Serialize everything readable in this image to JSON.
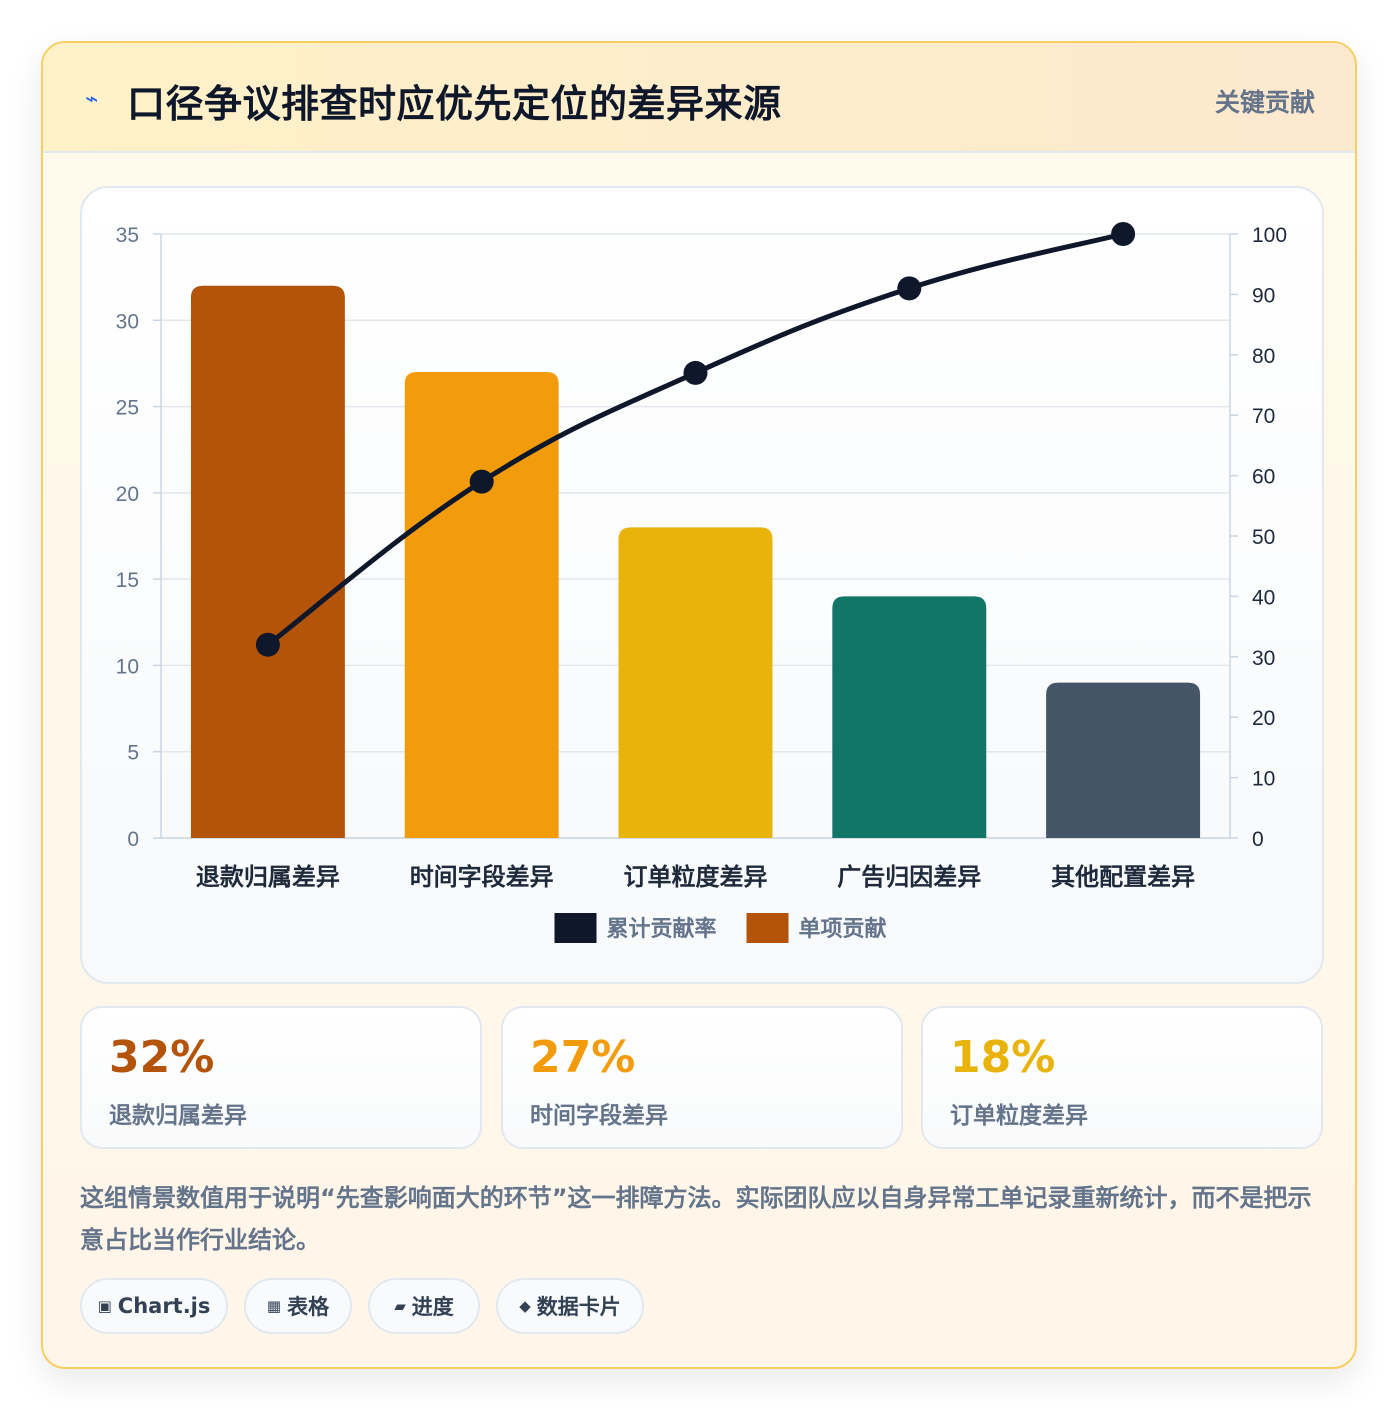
{
  "header": {
    "icon": "lightning-icon",
    "title": "口径争议排查时应优先定位的差异来源",
    "badge": "关键贡献"
  },
  "chart_data": {
    "type": "bar",
    "categories": [
      "退款归属差异",
      "时间字段差异",
      "订单粒度差异",
      "广告归因差异",
      "其他配置差异"
    ],
    "series": [
      {
        "name": "单项贡献",
        "type": "bar",
        "axis": "left",
        "values": [
          32,
          27,
          18,
          14,
          9
        ]
      },
      {
        "name": "累计贡献率",
        "type": "line",
        "axis": "right",
        "values": [
          32,
          59,
          77,
          91,
          100
        ]
      }
    ],
    "bar_colors": [
      "#b4530a",
      "#f29c0d",
      "#e8b30a",
      "#117567",
      "#465468"
    ],
    "line_color": "#0f172a",
    "y_left": {
      "min": 0,
      "max": 35,
      "ticks": [
        0,
        5,
        10,
        15,
        20,
        25,
        30,
        35
      ]
    },
    "y_right": {
      "min": 0,
      "max": 100,
      "ticks": [
        0,
        10,
        20,
        30,
        40,
        50,
        60,
        70,
        80,
        90,
        100
      ]
    },
    "legend": [
      {
        "label": "累计贡献率",
        "color": "#0f172a"
      },
      {
        "label": "单项贡献",
        "color": "#b4530a"
      }
    ],
    "legend_position": "bottom",
    "grid": true
  },
  "kpis": [
    {
      "value": "32%",
      "label": "退款归属差异",
      "color": "#b4530a"
    },
    {
      "value": "27%",
      "label": "时间字段差异",
      "color": "#f29c0d"
    },
    {
      "value": "18%",
      "label": "订单粒度差异",
      "color": "#e8b30a"
    }
  ],
  "note": "这组情景数值用于说明“先查影响面大的环节”这一排障方法。实际团队应以自身异常工单记录重新统计，而不是把示意占比当作行业结论。",
  "tags": [
    {
      "icon": "square-icon",
      "glyph": "▣",
      "label": "Chart.js"
    },
    {
      "icon": "grid-icon",
      "glyph": "▦",
      "label": "表格"
    },
    {
      "icon": "progress-icon",
      "glyph": "▰",
      "label": "进度"
    },
    {
      "icon": "diamond-icon",
      "glyph": "◆",
      "label": "数据卡片"
    }
  ]
}
